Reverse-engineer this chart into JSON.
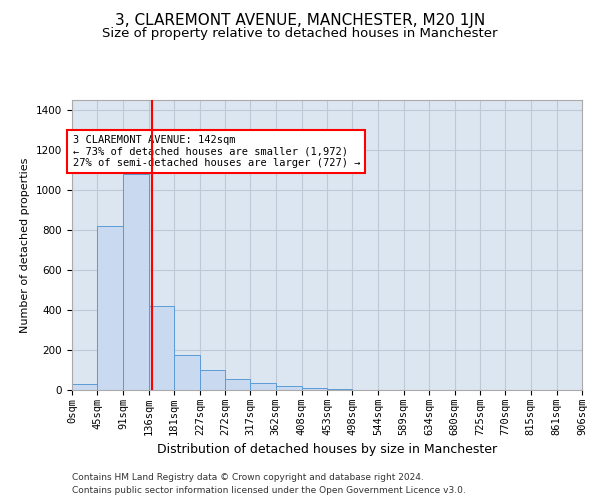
{
  "title": "3, CLAREMONT AVENUE, MANCHESTER, M20 1JN",
  "subtitle": "Size of property relative to detached houses in Manchester",
  "xlabel": "Distribution of detached houses by size in Manchester",
  "ylabel": "Number of detached properties",
  "bar_color": "#c9d9f0",
  "bar_edge_color": "#5b9bd5",
  "grid_color": "#c0c8d8",
  "background_color": "#dce6f1",
  "red_line_x": 142,
  "bin_edges": [
    0,
    45,
    91,
    136,
    181,
    227,
    272,
    317,
    362,
    408,
    453,
    498,
    544,
    589,
    634,
    680,
    725,
    770,
    815,
    861,
    906
  ],
  "bar_heights": [
    30,
    820,
    1080,
    420,
    175,
    100,
    55,
    35,
    20,
    8,
    3,
    1,
    1,
    0,
    0,
    0,
    0,
    0,
    0,
    0
  ],
  "ylim": [
    0,
    1450
  ],
  "yticks": [
    0,
    200,
    400,
    600,
    800,
    1000,
    1200,
    1400
  ],
  "annotation_text": "3 CLAREMONT AVENUE: 142sqm\n← 73% of detached houses are smaller (1,972)\n27% of semi-detached houses are larger (727) →",
  "annotation_box_color": "white",
  "annotation_box_edge_color": "red",
  "footer_line1": "Contains HM Land Registry data © Crown copyright and database right 2024.",
  "footer_line2": "Contains public sector information licensed under the Open Government Licence v3.0.",
  "title_fontsize": 11,
  "subtitle_fontsize": 9.5,
  "xlabel_fontsize": 9,
  "ylabel_fontsize": 8,
  "tick_fontsize": 7.5,
  "annotation_fontsize": 7.5,
  "footer_fontsize": 6.5
}
